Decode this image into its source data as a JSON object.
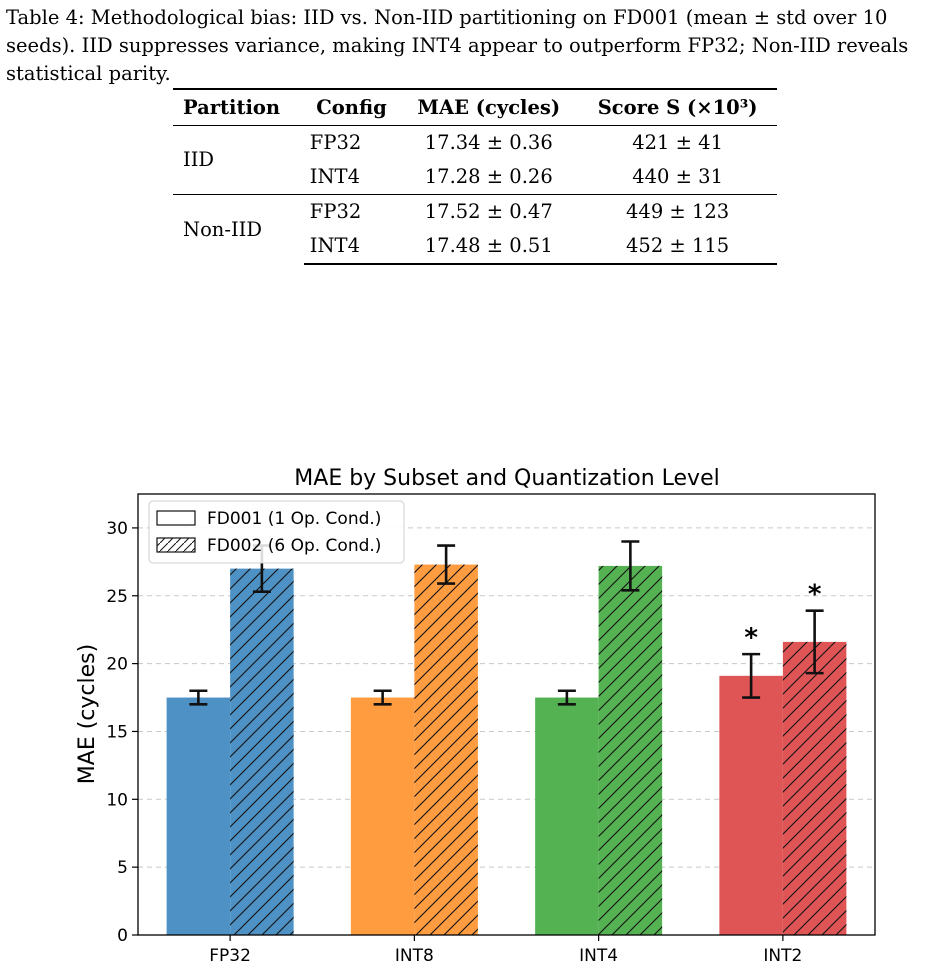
{
  "caption": {
    "label": "Table 4:",
    "text": "Methodological bias: IID vs. Non-IID partitioning on FD001 (mean ± std over 10 seeds). IID suppresses variance, making INT4 appear to outperform FP32; Non-IID reveals statistical parity."
  },
  "table": {
    "headers": [
      "Partition",
      "Config",
      "MAE (cycles)",
      "Score S (×10³)"
    ],
    "groups": [
      {
        "partition": "IID",
        "rows": [
          {
            "config": "FP32",
            "mae": "17.34 ± 0.36",
            "score": "421 ± 41"
          },
          {
            "config": "INT4",
            "mae": "17.28 ± 0.26",
            "score": "440 ± 31"
          }
        ]
      },
      {
        "partition": "Non-IID",
        "rows": [
          {
            "config": "FP32",
            "mae": "17.52 ± 0.47",
            "score": "449 ± 123"
          },
          {
            "config": "INT4",
            "mae": "17.48 ± 0.51",
            "score": "452 ± 115"
          }
        ]
      }
    ]
  },
  "chart_data": {
    "type": "bar",
    "title": "MAE by Subset and Quantization Level",
    "xlabel": "",
    "ylabel": "MAE (cycles)",
    "ylim": [
      0,
      32.5
    ],
    "yticks": [
      0,
      5,
      10,
      15,
      20,
      25,
      30
    ],
    "grid": "y-dashed",
    "legend_position": "top-left",
    "categories": [
      "FP32",
      "INT8",
      "INT4",
      "INT2"
    ],
    "category_colors": [
      "#4a90c4",
      "#ff9a3c",
      "#52b04f",
      "#de5253"
    ],
    "series": [
      {
        "name": "FD001 (1 Op. Cond.)",
        "hatch": "none",
        "values": [
          17.5,
          17.5,
          17.5,
          19.1
        ],
        "errors": [
          0.5,
          0.5,
          0.5,
          1.6
        ]
      },
      {
        "name": "FD002 (6 Op. Cond.)",
        "hatch": "diagonal",
        "values": [
          27.0,
          27.3,
          27.2,
          21.6
        ],
        "errors": [
          1.7,
          1.4,
          1.8,
          2.3
        ]
      }
    ],
    "annotations": [
      {
        "category": "INT2",
        "series": 0,
        "text": "*"
      },
      {
        "category": "INT2",
        "series": 1,
        "text": "*"
      }
    ]
  }
}
